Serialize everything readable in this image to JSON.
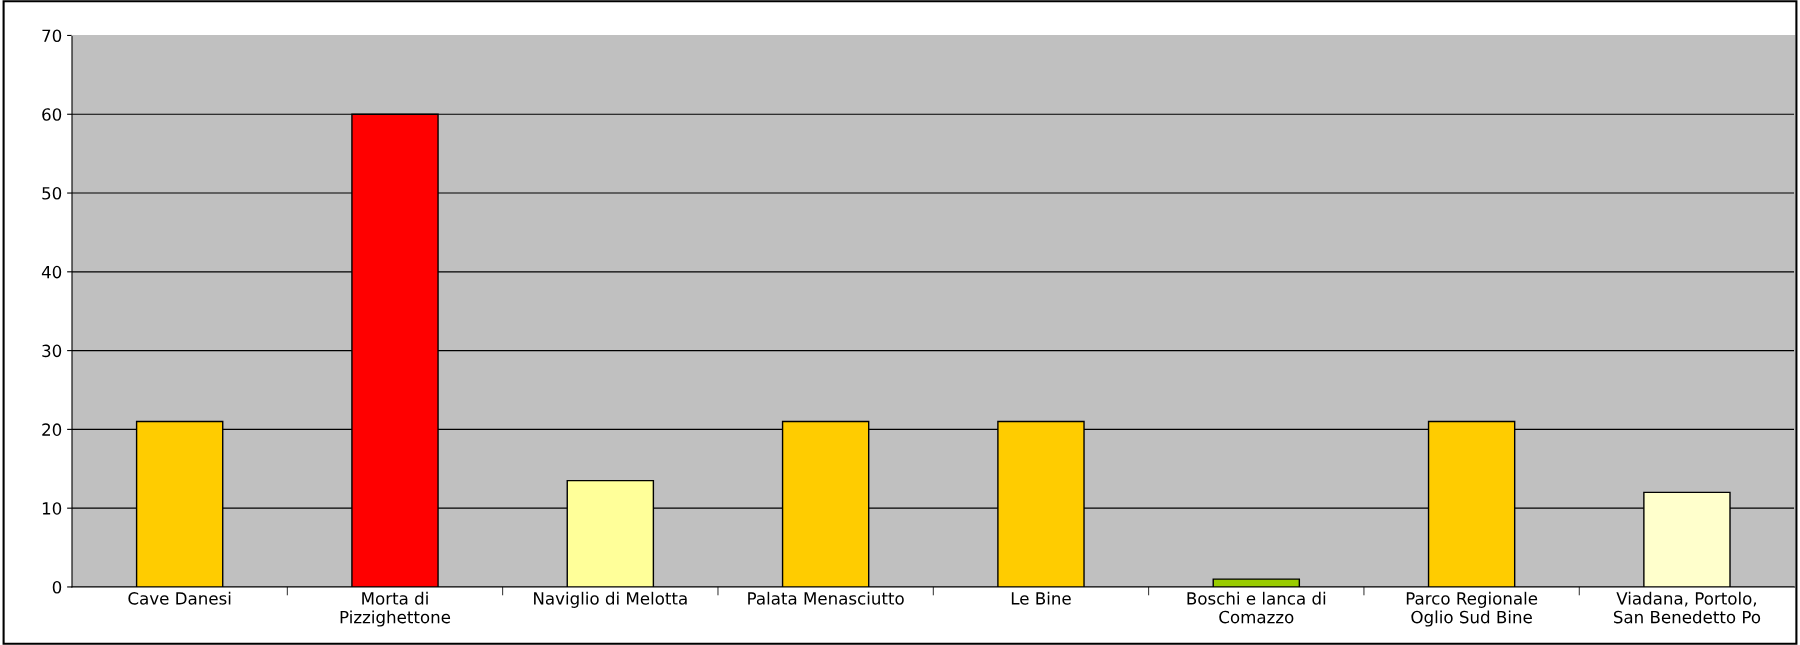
{
  "chart_data": {
    "type": "bar",
    "categories": [
      "Cave Danesi",
      "Morta di Pizzighettone",
      "Naviglio di Melotta",
      "Palata Menasciutto",
      "Le Bine",
      "Boschi e lanca di Comazzo",
      "Parco Regionale Oglio Sud Bine",
      "Viadana, Portolo, San Benedetto Po"
    ],
    "values": [
      21,
      60,
      13.5,
      21,
      21,
      1,
      21,
      12
    ],
    "colors": [
      "#ffcc00",
      "#ff0000",
      "#ffff99",
      "#ffcc00",
      "#ffcc00",
      "#99cc00",
      "#ffcc00",
      "#ffffcc"
    ],
    "ylim": [
      0,
      70
    ],
    "yticks": [
      0,
      10,
      20,
      30,
      40,
      50,
      60,
      70
    ],
    "grid": "y",
    "legend": false
  }
}
